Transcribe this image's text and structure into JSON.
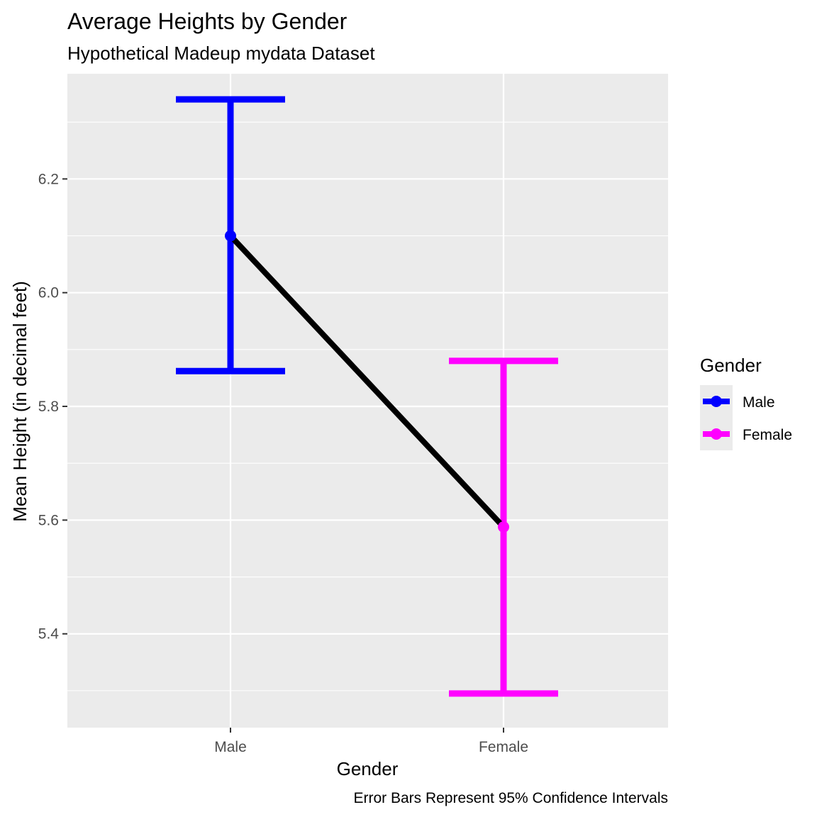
{
  "chart_data": {
    "type": "line",
    "title": "Average Heights by Gender",
    "subtitle": "Hypothetical Madeup mydata Dataset",
    "xlabel": "Gender",
    "ylabel": "Mean Height (in decimal feet)",
    "caption": "Error Bars Represent 95% Confidence Intervals",
    "categories": [
      "Male",
      "Female"
    ],
    "ylim": [
      5.235,
      6.385
    ],
    "y_ticks": [
      5.4,
      5.6,
      5.8,
      6.0,
      6.2
    ],
    "y_tick_labels": [
      "5.4",
      "5.6",
      "5.8",
      "6.0",
      "6.2"
    ],
    "grid": true,
    "legend_placement": "right",
    "legend": {
      "title": "Gender",
      "items": [
        "Male",
        "Female"
      ]
    },
    "series": [
      {
        "name": "Male",
        "category": "Male",
        "mean": 6.1,
        "ci_lower": 5.862,
        "ci_upper": 6.34,
        "color": "#0000FF"
      },
      {
        "name": "Female",
        "category": "Female",
        "mean": 5.588,
        "ci_lower": 5.295,
        "ci_upper": 5.88,
        "color": "#FF00FF"
      }
    ],
    "connecting_line_color": "#000000",
    "panel_background": "#EBEBEB",
    "grid_color": "#FFFFFF"
  }
}
